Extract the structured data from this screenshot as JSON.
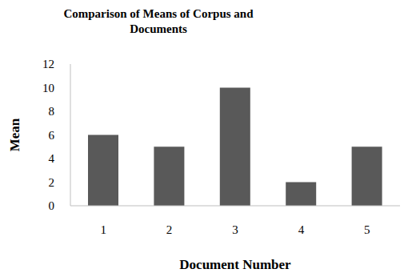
{
  "chart_data": {
    "type": "bar",
    "title": "Comparison of Means of Corpus and Documents",
    "x_label": "Document Number",
    "y_label": "Mean",
    "categories": [
      "1",
      "2",
      "3",
      "4",
      "5"
    ],
    "values": [
      6,
      5,
      10,
      2,
      5
    ],
    "color": "#595959",
    "ylim": [
      0,
      12
    ],
    "yticks": [
      0,
      2,
      4,
      6,
      8,
      10,
      12
    ],
    "grid": false
  }
}
